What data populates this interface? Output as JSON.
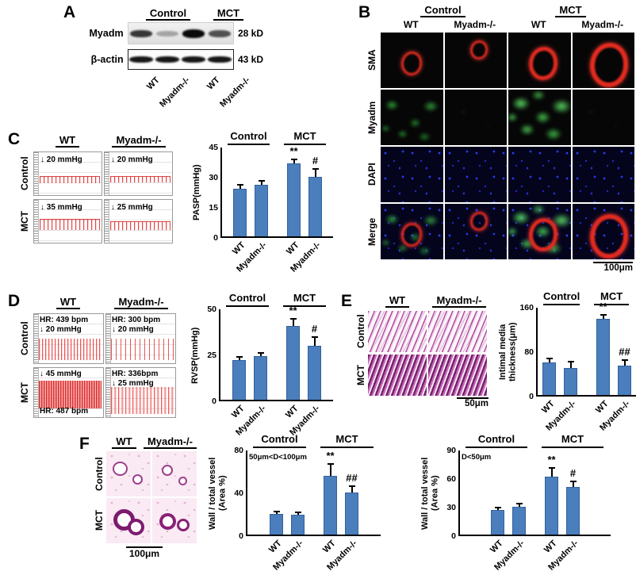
{
  "figure": {
    "bar_color": "#4a7ebc"
  },
  "panelA": {
    "label": "A",
    "groups": [
      "Control",
      "MCT"
    ],
    "blots": [
      {
        "protein": "Myadm",
        "size": "28 kD"
      },
      {
        "protein": "β-actin",
        "size": "43 kD"
      }
    ],
    "lanes": [
      "WT",
      "Myadm-/-",
      "WT",
      "Myadm-/-"
    ]
  },
  "panelB": {
    "label": "B",
    "groups": [
      "Control",
      "MCT"
    ],
    "cols": [
      "WT",
      "Myadm-/-",
      "WT",
      "Myadm-/-"
    ],
    "rows": [
      "SMA",
      "Myadm",
      "DAPI",
      "Merge"
    ],
    "scale": "100μm"
  },
  "panelC": {
    "label": "C",
    "cols": [
      "WT",
      "Myadm-/-"
    ],
    "rows": [
      "Control",
      "MCT"
    ],
    "traces": [
      {
        "label": "↓ 20 mmHg"
      },
      {
        "label": "↓ 20 mmHg"
      },
      {
        "label": "↓ 35 mmHg"
      },
      {
        "label": "↓ 25 mmHg"
      }
    ]
  },
  "panelD": {
    "label": "D",
    "cols": [
      "WT",
      "Myadm-/-"
    ],
    "rows": [
      "Control",
      "MCT"
    ],
    "traces": [
      {
        "line1": "HR: 439 bpm",
        "line2": "↓ 20 mmHg"
      },
      {
        "line1": "HR: 300 bpm",
        "line2": "↓ 20 mmHg"
      },
      {
        "line1": "↓ 45 mmHg",
        "line2": "HR: 487 bpm"
      },
      {
        "line1": "HR: 336bpm",
        "line2": "↓ 25 mmHg"
      }
    ]
  },
  "panelE": {
    "label": "E",
    "cols": [
      "WT",
      "Myadm-/-"
    ],
    "rows": [
      "Control",
      "MCT"
    ],
    "scale": "50μm"
  },
  "panelF": {
    "label": "F",
    "cols": [
      "WT",
      "Myadm-/-"
    ],
    "rows": [
      "Control",
      "MCT"
    ],
    "scale": "100μm"
  },
  "chart_data": [
    {
      "type": "bar",
      "id": "PASP",
      "ylabel": "PASP(mmHg)",
      "yticks": [
        0,
        15,
        30,
        45
      ],
      "ylim": [
        0,
        45
      ],
      "groups": [
        "Control",
        "MCT"
      ],
      "categories": [
        "WT",
        "Myadm-/-",
        "WT",
        "Myadm-/-"
      ],
      "values": [
        24,
        26,
        37,
        30
      ],
      "errors": [
        2.5,
        2.5,
        2.5,
        4.5
      ],
      "sig": [
        "",
        "",
        "**",
        "#"
      ],
      "annotation": ""
    },
    {
      "type": "bar",
      "id": "RVSP",
      "ylabel": "RVSP(mmHg)",
      "yticks": [
        0,
        25,
        50
      ],
      "ylim": [
        0,
        50
      ],
      "groups": [
        "Control",
        "MCT"
      ],
      "categories": [
        "WT",
        "Myadm-/-",
        "WT",
        "Myadm-/-"
      ],
      "values": [
        22,
        24,
        41,
        30
      ],
      "errors": [
        2,
        2.5,
        4,
        5
      ],
      "sig": [
        "",
        "",
        "**",
        "#"
      ],
      "annotation": ""
    },
    {
      "type": "bar",
      "id": "intimal-media-thickness",
      "ylabel": "Intimal media\nthickness(μm)",
      "yticks": [
        0,
        80,
        160
      ],
      "ylim": [
        0,
        160
      ],
      "groups": [
        "Control",
        "MCT"
      ],
      "categories": [
        "WT",
        "Myadm-/-",
        "WT",
        "Myadm-/-"
      ],
      "values": [
        60,
        50,
        140,
        54
      ],
      "errors": [
        8,
        13,
        9,
        12
      ],
      "sig": [
        "",
        "",
        "**",
        "##"
      ],
      "annotation": ""
    },
    {
      "type": "bar",
      "id": "wall-total-vessel-medium",
      "ylabel": "Wall / total vessel\n(Area %)",
      "yticks": [
        0,
        40,
        80
      ],
      "ylim": [
        0,
        80
      ],
      "groups": [
        "Control",
        "MCT"
      ],
      "categories": [
        "WT",
        "Myadm-/-",
        "WT",
        "Myadm-/-"
      ],
      "values": [
        20,
        19,
        56,
        40
      ],
      "errors": [
        3,
        3,
        12,
        7
      ],
      "sig": [
        "",
        "",
        "**",
        "##"
      ],
      "annotation": "50μm<D<100μm"
    },
    {
      "type": "bar",
      "id": "wall-total-vessel-small",
      "ylabel": "Wall / total vessel\n(Area %)",
      "yticks": [
        0,
        30,
        60,
        90
      ],
      "ylim": [
        0,
        90
      ],
      "groups": [
        "Control",
        "MCT"
      ],
      "categories": [
        "WT",
        "Myadm-/-",
        "WT",
        "Myadm-/-"
      ],
      "values": [
        26,
        30,
        62,
        51
      ],
      "errors": [
        4,
        4,
        10,
        7
      ],
      "sig": [
        "",
        "",
        "**",
        "#"
      ],
      "annotation": "D<50μm"
    }
  ]
}
